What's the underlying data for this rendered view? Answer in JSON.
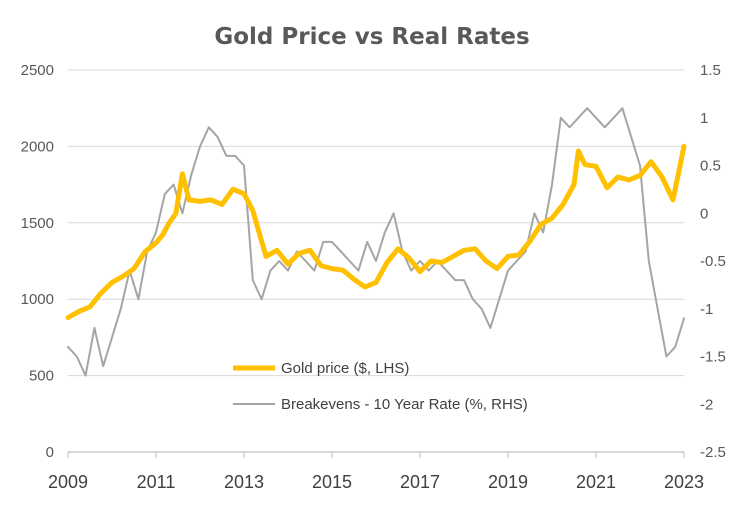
{
  "colors": {
    "gold": "#FFC000",
    "breakevens": "#A5A5A5",
    "gridline": "#D9D9D9",
    "axis": "#BFBFBF",
    "text": "#595959"
  },
  "chart_data": {
    "type": "line",
    "title": "Gold Price vs Real Rates",
    "grid": true,
    "legend_position": "center-bottom",
    "x_ticks": [
      "2009",
      "2011",
      "2013",
      "2015",
      "2017",
      "2019",
      "2021",
      "2023"
    ],
    "xlim": [
      2009.0,
      2023.0
    ],
    "y_left": {
      "lim": [
        0,
        2500
      ],
      "ticks": [
        "0",
        "500",
        "1000",
        "1500",
        "2000",
        "2500"
      ]
    },
    "y_right": {
      "lim": [
        -2.5,
        1.5
      ],
      "ticks": [
        "-2.5",
        "-2",
        "-1.5",
        "-1",
        "-0.5",
        "0",
        "0.5",
        "1",
        "1.5"
      ]
    },
    "series": [
      {
        "name": "Gold price ($, LHS)",
        "axis": "left",
        "color": "#FFC000",
        "x": [
          2009.0,
          2009.25,
          2009.5,
          2009.75,
          2010.0,
          2010.25,
          2010.5,
          2010.75,
          2011.0,
          2011.15,
          2011.3,
          2011.45,
          2011.6,
          2011.75,
          2012.0,
          2012.25,
          2012.5,
          2012.75,
          2013.0,
          2013.2,
          2013.5,
          2013.75,
          2014.0,
          2014.25,
          2014.5,
          2014.75,
          2015.0,
          2015.25,
          2015.5,
          2015.75,
          2016.0,
          2016.25,
          2016.5,
          2016.75,
          2017.0,
          2017.25,
          2017.5,
          2017.75,
          2018.0,
          2018.25,
          2018.5,
          2018.75,
          2019.0,
          2019.25,
          2019.5,
          2019.75,
          2020.0,
          2020.25,
          2020.5,
          2020.6,
          2020.75,
          2021.0,
          2021.25,
          2021.5,
          2021.75,
          2022.0,
          2022.25,
          2022.5,
          2022.75,
          2023.0
        ],
        "values": [
          880,
          920,
          950,
          1040,
          1110,
          1150,
          1200,
          1310,
          1370,
          1420,
          1500,
          1560,
          1820,
          1650,
          1640,
          1650,
          1620,
          1720,
          1690,
          1580,
          1280,
          1320,
          1230,
          1300,
          1320,
          1220,
          1200,
          1190,
          1130,
          1080,
          1110,
          1240,
          1330,
          1270,
          1180,
          1250,
          1240,
          1280,
          1320,
          1330,
          1250,
          1200,
          1280,
          1290,
          1380,
          1490,
          1530,
          1620,
          1750,
          1970,
          1880,
          1870,
          1730,
          1800,
          1780,
          1810,
          1900,
          1800,
          1650,
          2000
        ]
      },
      {
        "name": "Breakevens - 10 Year Rate (%, RHS)",
        "axis": "right",
        "color": "#A5A5A5",
        "x": [
          2009.0,
          2009.2,
          2009.4,
          2009.6,
          2009.8,
          2010.0,
          2010.2,
          2010.4,
          2010.6,
          2010.8,
          2011.0,
          2011.2,
          2011.4,
          2011.6,
          2011.8,
          2012.0,
          2012.2,
          2012.4,
          2012.6,
          2012.8,
          2013.0,
          2013.2,
          2013.4,
          2013.6,
          2013.8,
          2014.0,
          2014.2,
          2014.4,
          2014.6,
          2014.8,
          2015.0,
          2015.2,
          2015.4,
          2015.6,
          2015.8,
          2016.0,
          2016.2,
          2016.4,
          2016.6,
          2016.8,
          2017.0,
          2017.2,
          2017.4,
          2017.6,
          2017.8,
          2018.0,
          2018.2,
          2018.4,
          2018.6,
          2018.8,
          2019.0,
          2019.2,
          2019.4,
          2019.6,
          2019.8,
          2020.0,
          2020.2,
          2020.4,
          2020.6,
          2020.8,
          2021.0,
          2021.2,
          2021.4,
          2021.6,
          2021.8,
          2022.0,
          2022.2,
          2022.4,
          2022.6,
          2022.8,
          2023.0
        ],
        "values": [
          -1.4,
          -1.5,
          -1.7,
          -1.2,
          -1.6,
          -1.3,
          -1.0,
          -0.6,
          -0.9,
          -0.4,
          -0.2,
          0.2,
          0.3,
          0.0,
          0.4,
          0.7,
          0.9,
          0.8,
          0.6,
          0.6,
          0.5,
          -0.7,
          -0.9,
          -0.6,
          -0.5,
          -0.6,
          -0.4,
          -0.5,
          -0.6,
          -0.3,
          -0.3,
          -0.4,
          -0.5,
          -0.6,
          -0.3,
          -0.5,
          -0.2,
          0.0,
          -0.4,
          -0.6,
          -0.5,
          -0.6,
          -0.5,
          -0.6,
          -0.7,
          -0.7,
          -0.9,
          -1.0,
          -1.2,
          -0.9,
          -0.6,
          -0.5,
          -0.4,
          0.0,
          -0.2,
          0.3,
          1.0,
          0.9,
          1.0,
          1.1,
          1.0,
          0.9,
          1.0,
          1.1,
          0.8,
          0.5,
          -0.5,
          -1.0,
          -1.5,
          -1.4,
          -1.1
        ]
      }
    ]
  }
}
